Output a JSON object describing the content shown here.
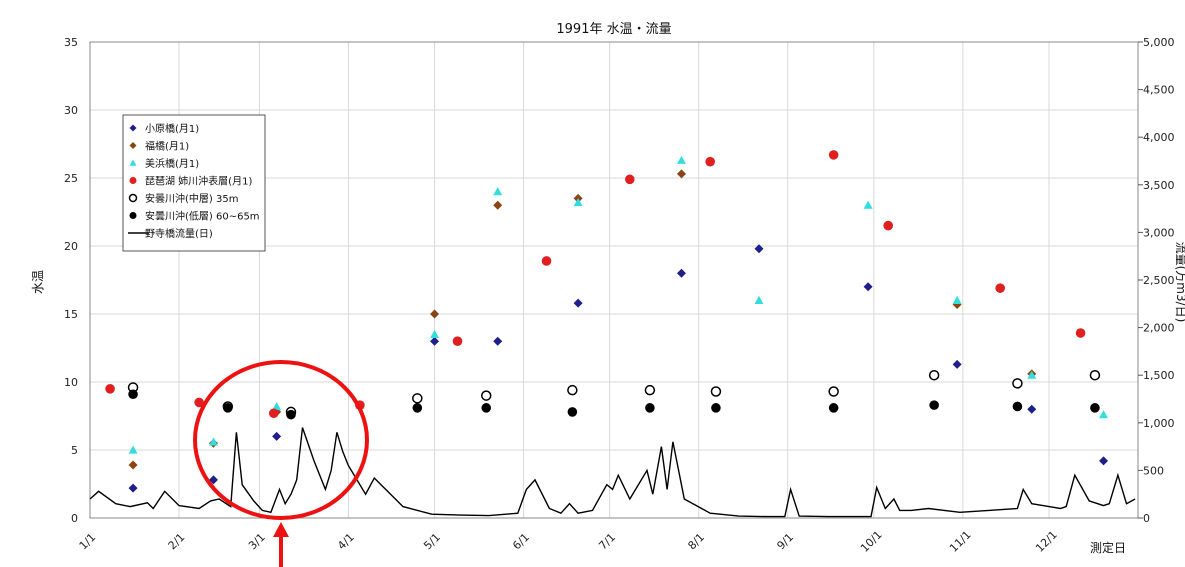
{
  "chart_data": {
    "type": "scatter",
    "title": "1991年 水温・流量",
    "ylabel": "水温",
    "y2label": "流量(万m3/日)",
    "xlabel": "測定日",
    "ylim": [
      0,
      35
    ],
    "y2lim": [
      0,
      5000
    ],
    "yticks": [
      "0",
      "5",
      "10",
      "15",
      "20",
      "25",
      "30",
      "35"
    ],
    "y2ticks": [
      "0",
      "500",
      "1,000",
      "1,500",
      "2,000",
      "2,500",
      "3,000",
      "3,500",
      "4,000",
      "4,500",
      "5,000"
    ],
    "x_ticks": [
      "1/1",
      "2/1",
      "3/1",
      "4/1",
      "5/1",
      "6/1",
      "7/1",
      "8/1",
      "9/1",
      "10/1",
      "11/1",
      "12/1"
    ],
    "grid": true,
    "legend_position": "upper-left",
    "series": [
      {
        "name": "小原橋(月1)",
        "marker": "diamond",
        "color": "#1f1f8c",
        "x": [
          "1991-01-16",
          "1991-02-13",
          "1991-03-07",
          "1991-04-05",
          "1991-05-01",
          "1991-05-23",
          "1991-06-20",
          "1991-07-26",
          "1991-08-22",
          "1991-09-29",
          "1991-10-30",
          "1991-11-25",
          "1991-12-20"
        ],
        "y": [
          2.2,
          2.8,
          6.0,
          8.3,
          13.0,
          13.0,
          15.8,
          18.0,
          19.8,
          17.0,
          11.3,
          8.0,
          4.2
        ]
      },
      {
        "name": "福橋(月1)",
        "marker": "diamond",
        "color": "#8b4513",
        "x": [
          "1991-01-16",
          "1991-02-13",
          "1991-03-07",
          "1991-04-05",
          "1991-05-01",
          "1991-05-23",
          "1991-06-20",
          "1991-07-26",
          "1991-10-30",
          "1991-11-25"
        ],
        "y": [
          3.9,
          5.5,
          7.8,
          8.3,
          15.0,
          23.0,
          23.5,
          25.3,
          15.7,
          10.6
        ]
      },
      {
        "name": "美浜橋(月1)",
        "marker": "triangle",
        "color": "#33dddd",
        "x": [
          "1991-01-16",
          "1991-02-13",
          "1991-03-07",
          "1991-04-05",
          "1991-05-01",
          "1991-05-23",
          "1991-06-20",
          "1991-07-26",
          "1991-08-22",
          "1991-09-29",
          "1991-10-30",
          "1991-11-25",
          "1991-12-20"
        ],
        "y": [
          5.0,
          5.6,
          8.2,
          8.3,
          13.5,
          24.0,
          23.2,
          26.3,
          16.0,
          23.0,
          16.0,
          10.5,
          7.6
        ]
      },
      {
        "name": "琵琶湖 姉川沖表層(月1)",
        "marker": "circle",
        "color": "#e02020",
        "x": [
          "1991-01-08",
          "1991-02-08",
          "1991-03-06",
          "1991-04-05",
          "1991-05-09",
          "1991-06-09",
          "1991-07-08",
          "1991-08-05",
          "1991-09-17",
          "1991-10-06",
          "1991-11-14",
          "1991-12-12"
        ],
        "y": [
          9.5,
          8.5,
          7.7,
          8.3,
          13.0,
          18.9,
          24.9,
          26.2,
          26.7,
          21.5,
          16.9,
          13.6
        ]
      },
      {
        "name": "安曇川沖(中層) 35m",
        "marker": "open-circle",
        "color": "#000000",
        "x": [
          "1991-01-16",
          "1991-02-18",
          "1991-03-12",
          "1991-04-25",
          "1991-05-19",
          "1991-06-18",
          "1991-07-15",
          "1991-08-07",
          "1991-09-17",
          "1991-10-22",
          "1991-11-20",
          "1991-12-17"
        ],
        "y": [
          9.6,
          8.2,
          7.8,
          8.8,
          9.0,
          9.4,
          9.4,
          9.3,
          9.3,
          10.5,
          9.9,
          10.5
        ]
      },
      {
        "name": "安曇川沖(低層) 60~65m",
        "marker": "filled-circle",
        "color": "#000000",
        "x": [
          "1991-01-16",
          "1991-02-18",
          "1991-03-12",
          "1991-04-25",
          "1991-05-19",
          "1991-06-18",
          "1991-07-15",
          "1991-08-07",
          "1991-09-17",
          "1991-10-22",
          "1991-11-20",
          "1991-12-17"
        ],
        "y": [
          9.1,
          8.1,
          7.6,
          8.1,
          8.1,
          7.8,
          8.1,
          8.1,
          8.1,
          8.3,
          8.2,
          8.1
        ]
      },
      {
        "name": "野寺橋流量(日)",
        "marker": "line",
        "color": "#000000",
        "axis": "right",
        "x": [
          "1991-01-01",
          "1991-01-04",
          "1991-01-10",
          "1991-01-15",
          "1991-01-21",
          "1991-01-23",
          "1991-01-27",
          "1991-02-01",
          "1991-02-08",
          "1991-02-12",
          "1991-02-15",
          "1991-02-19",
          "1991-02-21",
          "1991-02-23",
          "1991-02-27",
          "1991-03-02",
          "1991-03-05",
          "1991-03-08",
          "1991-03-10",
          "1991-03-12",
          "1991-03-14",
          "1991-03-16",
          "1991-03-20",
          "1991-03-24",
          "1991-03-26",
          "1991-03-28",
          "1991-03-30",
          "1991-04-01",
          "1991-04-04",
          "1991-04-07",
          "1991-04-10",
          "1991-04-14",
          "1991-04-20",
          "1991-04-30",
          "1991-05-10",
          "1991-05-20",
          "1991-05-30",
          "1991-06-02",
          "1991-06-05",
          "1991-06-10",
          "1991-06-14",
          "1991-06-17",
          "1991-06-20",
          "1991-06-25",
          "1991-06-30",
          "1991-07-02",
          "1991-07-04",
          "1991-07-08",
          "1991-07-14",
          "1991-07-16",
          "1991-07-19",
          "1991-07-21",
          "1991-07-23",
          "1991-07-27",
          "1991-08-05",
          "1991-08-15",
          "1991-08-25",
          "1991-08-31",
          "1991-09-02",
          "1991-09-05",
          "1991-09-15",
          "1991-09-30",
          "1991-10-02",
          "1991-10-05",
          "1991-10-08",
          "1991-10-10",
          "1991-10-14",
          "1991-10-20",
          "1991-10-31",
          "1991-11-10",
          "1991-11-20",
          "1991-11-22",
          "1991-11-25",
          "1991-12-01",
          "1991-12-05",
          "1991-12-07",
          "1991-12-10",
          "1991-12-15",
          "1991-12-20",
          "1991-12-22",
          "1991-12-25",
          "1991-12-28",
          "1991-12-31"
        ],
        "y": [
          200,
          280,
          150,
          120,
          160,
          100,
          280,
          130,
          100,
          180,
          200,
          120,
          900,
          350,
          180,
          80,
          60,
          300,
          150,
          250,
          400,
          950,
          600,
          300,
          500,
          900,
          700,
          550,
          400,
          250,
          420,
          300,
          120,
          40,
          30,
          25,
          50,
          300,
          400,
          100,
          50,
          150,
          50,
          80,
          350,
          300,
          450,
          200,
          500,
          250,
          750,
          300,
          800,
          200,
          50,
          20,
          15,
          15,
          300,
          20,
          15,
          15,
          320,
          100,
          200,
          80,
          80,
          100,
          60,
          80,
          100,
          300,
          150,
          120,
          100,
          120,
          450,
          180,
          130,
          150,
          450,
          150,
          200
        ]
      }
    ]
  }
}
